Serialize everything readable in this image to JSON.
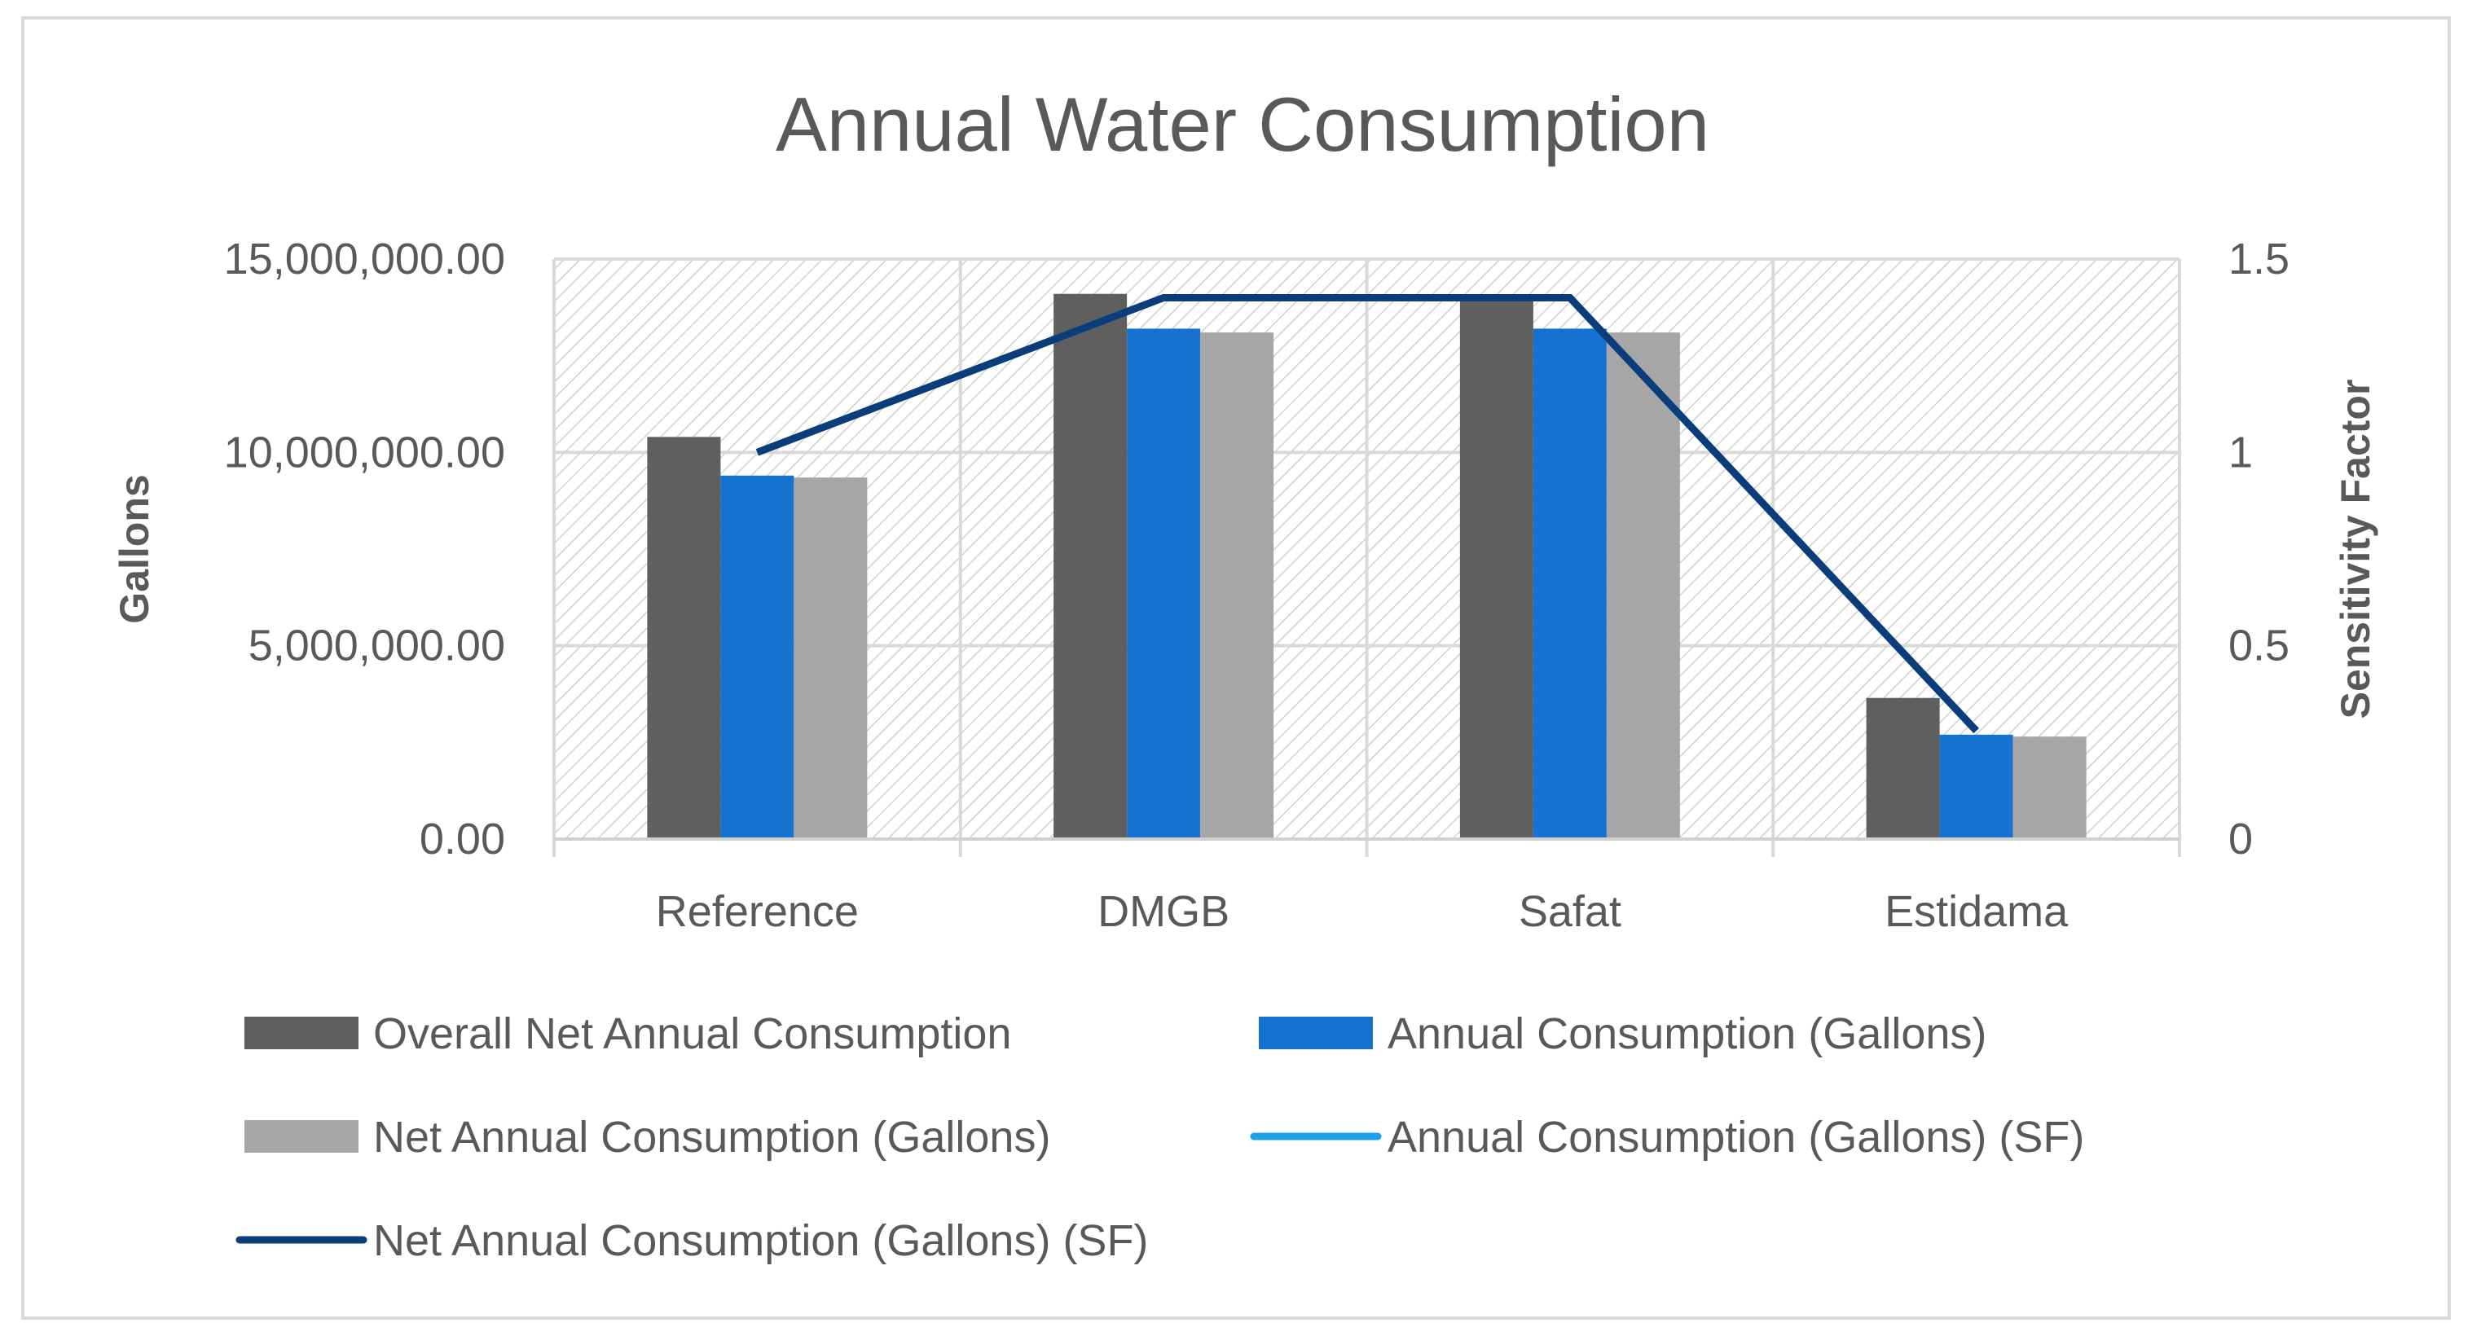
{
  "chart_data": {
    "type": "bar",
    "title": "Annual Water Consumption",
    "categories": [
      "Reference",
      "DMGB",
      "Safat",
      "Estidama"
    ],
    "ylabel": "Gallons",
    "y2label": "Sensitivity Factor",
    "ylim": [
      0,
      15000000
    ],
    "y2lim": [
      0,
      1.5
    ],
    "yticks": [
      "0.00",
      "5,000,000.00",
      "10,000,000.00",
      "15,000,000.00"
    ],
    "y2ticks": [
      "0",
      "0.5",
      "1",
      "1.5"
    ],
    "grid": true,
    "legend_position": "bottom",
    "series": [
      {
        "name": "Overall Net Annual Consumption",
        "kind": "bar",
        "axis": "left",
        "color": "#5f5f5f",
        "values": [
          10400000,
          14100000,
          14000000,
          3650000
        ]
      },
      {
        "name": "Annual Consumption (Gallons)",
        "kind": "bar",
        "axis": "left",
        "color": "#1672d0",
        "values": [
          9400000,
          13200000,
          13200000,
          2700000
        ]
      },
      {
        "name": "Net Annual Consumption (Gallons)",
        "kind": "bar",
        "axis": "left",
        "color": "#a6a6a6",
        "values": [
          9350000,
          13100000,
          13100000,
          2650000
        ]
      },
      {
        "name": "Annual Consumption (Gallons) (SF)",
        "kind": "line",
        "axis": "right",
        "color": "#1aa3e8",
        "values": [
          1.0,
          1.4,
          1.4,
          0.28
        ]
      },
      {
        "name": "Net Annual Consumption (Gallons) (SF)",
        "kind": "line",
        "axis": "right",
        "color": "#0a3d7a",
        "values": [
          1.0,
          1.4,
          1.4,
          0.28
        ]
      }
    ]
  }
}
